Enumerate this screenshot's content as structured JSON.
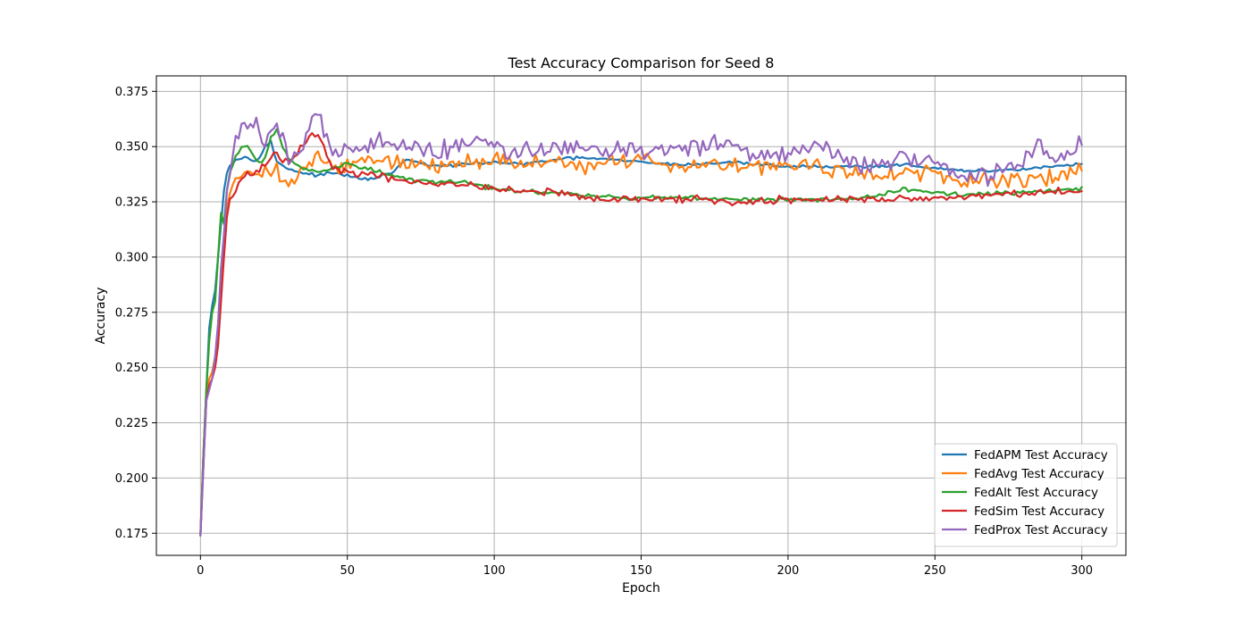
{
  "chart_data": {
    "type": "line",
    "title": "Test Accuracy Comparison for Seed 8",
    "xlabel": "Epoch",
    "ylabel": "Accuracy",
    "xlim": [
      -15,
      315
    ],
    "ylim": [
      0.165,
      0.382
    ],
    "xticks": [
      0,
      50,
      100,
      150,
      200,
      250,
      300
    ],
    "xtick_labels": [
      "0",
      "50",
      "100",
      "150",
      "200",
      "250",
      "300"
    ],
    "yticks": [
      0.175,
      0.2,
      0.225,
      0.25,
      0.275,
      0.3,
      0.325,
      0.35,
      0.375
    ],
    "ytick_labels": [
      "0.175",
      "0.200",
      "0.225",
      "0.250",
      "0.275",
      "0.300",
      "0.325",
      "0.350",
      "0.375"
    ],
    "grid": true,
    "legend_position": "lower right",
    "epochs": {
      "start": 0,
      "end": 300
    },
    "series": [
      {
        "name": "FedAPM Test Accuracy",
        "color": "#1f77b4",
        "keypoints": [
          [
            0,
            0.174
          ],
          [
            1,
            0.21
          ],
          [
            2,
            0.24
          ],
          [
            3,
            0.268
          ],
          [
            4,
            0.278
          ],
          [
            5,
            0.285
          ],
          [
            6,
            0.3
          ],
          [
            7,
            0.315
          ],
          [
            8,
            0.33
          ],
          [
            9,
            0.338
          ],
          [
            10,
            0.342
          ],
          [
            12,
            0.344
          ],
          [
            14,
            0.345
          ],
          [
            16,
            0.345
          ],
          [
            18,
            0.344
          ],
          [
            20,
            0.345
          ],
          [
            22,
            0.35
          ],
          [
            24,
            0.352
          ],
          [
            26,
            0.343
          ],
          [
            30,
            0.34
          ],
          [
            35,
            0.338
          ],
          [
            40,
            0.337
          ],
          [
            45,
            0.338
          ],
          [
            50,
            0.337
          ],
          [
            55,
            0.335
          ],
          [
            60,
            0.336
          ],
          [
            65,
            0.338
          ],
          [
            70,
            0.344
          ],
          [
            80,
            0.341
          ],
          [
            90,
            0.342
          ],
          [
            100,
            0.343
          ],
          [
            110,
            0.342
          ],
          [
            120,
            0.344
          ],
          [
            130,
            0.345
          ],
          [
            140,
            0.344
          ],
          [
            150,
            0.343
          ],
          [
            160,
            0.342
          ],
          [
            170,
            0.342
          ],
          [
            180,
            0.343
          ],
          [
            190,
            0.342
          ],
          [
            200,
            0.341
          ],
          [
            210,
            0.341
          ],
          [
            220,
            0.341
          ],
          [
            230,
            0.341
          ],
          [
            240,
            0.342
          ],
          [
            250,
            0.34
          ],
          [
            260,
            0.339
          ],
          [
            270,
            0.339
          ],
          [
            280,
            0.34
          ],
          [
            290,
            0.341
          ],
          [
            300,
            0.342
          ]
        ],
        "volatility": 0.001
      },
      {
        "name": "FedAvg Test Accuracy",
        "color": "#ff7f0e",
        "keypoints": [
          [
            0,
            0.174
          ],
          [
            1,
            0.21
          ],
          [
            2,
            0.238
          ],
          [
            3,
            0.245
          ],
          [
            4,
            0.248
          ],
          [
            5,
            0.255
          ],
          [
            6,
            0.265
          ],
          [
            7,
            0.29
          ],
          [
            8,
            0.31
          ],
          [
            9,
            0.322
          ],
          [
            10,
            0.33
          ],
          [
            12,
            0.336
          ],
          [
            14,
            0.338
          ],
          [
            16,
            0.34
          ],
          [
            18,
            0.339
          ],
          [
            20,
            0.338
          ],
          [
            25,
            0.34
          ],
          [
            30,
            0.332
          ],
          [
            35,
            0.34
          ],
          [
            40,
            0.345
          ],
          [
            45,
            0.34
          ],
          [
            50,
            0.342
          ],
          [
            60,
            0.345
          ],
          [
            70,
            0.342
          ],
          [
            80,
            0.341
          ],
          [
            90,
            0.343
          ],
          [
            100,
            0.344
          ],
          [
            110,
            0.342
          ],
          [
            120,
            0.343
          ],
          [
            130,
            0.342
          ],
          [
            140,
            0.343
          ],
          [
            150,
            0.344
          ],
          [
            160,
            0.341
          ],
          [
            170,
            0.342
          ],
          [
            180,
            0.343
          ],
          [
            190,
            0.341
          ],
          [
            200,
            0.342
          ],
          [
            210,
            0.341
          ],
          [
            220,
            0.338
          ],
          [
            230,
            0.337
          ],
          [
            240,
            0.339
          ],
          [
            250,
            0.337
          ],
          [
            260,
            0.333
          ],
          [
            270,
            0.334
          ],
          [
            280,
            0.335
          ],
          [
            290,
            0.337
          ],
          [
            300,
            0.341
          ]
        ],
        "volatility": 0.0055
      },
      {
        "name": "FedAlt Test Accuracy",
        "color": "#2ca02c",
        "keypoints": [
          [
            0,
            0.174
          ],
          [
            1,
            0.21
          ],
          [
            2,
            0.24
          ],
          [
            3,
            0.262
          ],
          [
            4,
            0.275
          ],
          [
            5,
            0.28
          ],
          [
            6,
            0.3
          ],
          [
            7,
            0.32
          ],
          [
            8,
            0.315
          ],
          [
            9,
            0.33
          ],
          [
            10,
            0.338
          ],
          [
            12,
            0.345
          ],
          [
            14,
            0.35
          ],
          [
            16,
            0.35
          ],
          [
            18,
            0.346
          ],
          [
            20,
            0.342
          ],
          [
            22,
            0.345
          ],
          [
            24,
            0.354
          ],
          [
            26,
            0.357
          ],
          [
            28,
            0.35
          ],
          [
            30,
            0.345
          ],
          [
            35,
            0.34
          ],
          [
            40,
            0.338
          ],
          [
            45,
            0.34
          ],
          [
            50,
            0.342
          ],
          [
            60,
            0.339
          ],
          [
            70,
            0.335
          ],
          [
            80,
            0.334
          ],
          [
            90,
            0.334
          ],
          [
            100,
            0.331
          ],
          [
            110,
            0.33
          ],
          [
            120,
            0.329
          ],
          [
            130,
            0.328
          ],
          [
            140,
            0.327
          ],
          [
            150,
            0.327
          ],
          [
            160,
            0.327
          ],
          [
            170,
            0.327
          ],
          [
            180,
            0.326
          ],
          [
            190,
            0.326
          ],
          [
            200,
            0.326
          ],
          [
            210,
            0.326
          ],
          [
            220,
            0.326
          ],
          [
            230,
            0.328
          ],
          [
            240,
            0.331
          ],
          [
            250,
            0.329
          ],
          [
            260,
            0.328
          ],
          [
            270,
            0.329
          ],
          [
            280,
            0.329
          ],
          [
            290,
            0.33
          ],
          [
            300,
            0.331
          ]
        ],
        "volatility": 0.0015
      },
      {
        "name": "FedSim Test Accuracy",
        "color": "#d62728",
        "keypoints": [
          [
            0,
            0.174
          ],
          [
            1,
            0.205
          ],
          [
            2,
            0.235
          ],
          [
            3,
            0.242
          ],
          [
            4,
            0.245
          ],
          [
            5,
            0.25
          ],
          [
            6,
            0.26
          ],
          [
            7,
            0.28
          ],
          [
            8,
            0.3
          ],
          [
            9,
            0.318
          ],
          [
            10,
            0.325
          ],
          [
            12,
            0.33
          ],
          [
            14,
            0.335
          ],
          [
            16,
            0.337
          ],
          [
            18,
            0.338
          ],
          [
            20,
            0.34
          ],
          [
            22,
            0.342
          ],
          [
            24,
            0.345
          ],
          [
            26,
            0.346
          ],
          [
            30,
            0.342
          ],
          [
            35,
            0.35
          ],
          [
            38,
            0.356
          ],
          [
            40,
            0.355
          ],
          [
            45,
            0.34
          ],
          [
            50,
            0.338
          ],
          [
            60,
            0.337
          ],
          [
            70,
            0.334
          ],
          [
            80,
            0.333
          ],
          [
            90,
            0.333
          ],
          [
            100,
            0.331
          ],
          [
            110,
            0.33
          ],
          [
            120,
            0.329
          ],
          [
            130,
            0.327
          ],
          [
            140,
            0.326
          ],
          [
            150,
            0.326
          ],
          [
            160,
            0.326
          ],
          [
            170,
            0.326
          ],
          [
            180,
            0.325
          ],
          [
            190,
            0.325
          ],
          [
            200,
            0.326
          ],
          [
            210,
            0.326
          ],
          [
            220,
            0.326
          ],
          [
            230,
            0.326
          ],
          [
            240,
            0.326
          ],
          [
            250,
            0.327
          ],
          [
            260,
            0.327
          ],
          [
            270,
            0.328
          ],
          [
            280,
            0.329
          ],
          [
            290,
            0.33
          ],
          [
            300,
            0.33
          ]
        ],
        "volatility": 0.0025
      },
      {
        "name": "FedProx Test Accuracy",
        "color": "#9467bd",
        "keypoints": [
          [
            0,
            0.174
          ],
          [
            1,
            0.205
          ],
          [
            2,
            0.235
          ],
          [
            3,
            0.24
          ],
          [
            4,
            0.245
          ],
          [
            5,
            0.255
          ],
          [
            6,
            0.27
          ],
          [
            7,
            0.295
          ],
          [
            8,
            0.31
          ],
          [
            9,
            0.33
          ],
          [
            10,
            0.34
          ],
          [
            12,
            0.352
          ],
          [
            14,
            0.358
          ],
          [
            16,
            0.36
          ],
          [
            18,
            0.359
          ],
          [
            20,
            0.356
          ],
          [
            22,
            0.35
          ],
          [
            24,
            0.356
          ],
          [
            26,
            0.358
          ],
          [
            30,
            0.345
          ],
          [
            35,
            0.35
          ],
          [
            38,
            0.362
          ],
          [
            40,
            0.365
          ],
          [
            45,
            0.345
          ],
          [
            50,
            0.348
          ],
          [
            60,
            0.352
          ],
          [
            70,
            0.35
          ],
          [
            80,
            0.348
          ],
          [
            90,
            0.352
          ],
          [
            100,
            0.35
          ],
          [
            110,
            0.348
          ],
          [
            120,
            0.349
          ],
          [
            130,
            0.35
          ],
          [
            140,
            0.349
          ],
          [
            150,
            0.35
          ],
          [
            160,
            0.349
          ],
          [
            170,
            0.35
          ],
          [
            180,
            0.352
          ],
          [
            190,
            0.345
          ],
          [
            200,
            0.348
          ],
          [
            210,
            0.35
          ],
          [
            220,
            0.344
          ],
          [
            230,
            0.341
          ],
          [
            240,
            0.345
          ],
          [
            250,
            0.343
          ],
          [
            260,
            0.336
          ],
          [
            270,
            0.338
          ],
          [
            280,
            0.342
          ],
          [
            285,
            0.352
          ],
          [
            290,
            0.344
          ],
          [
            300,
            0.35
          ]
        ],
        "volatility": 0.0065
      }
    ]
  }
}
